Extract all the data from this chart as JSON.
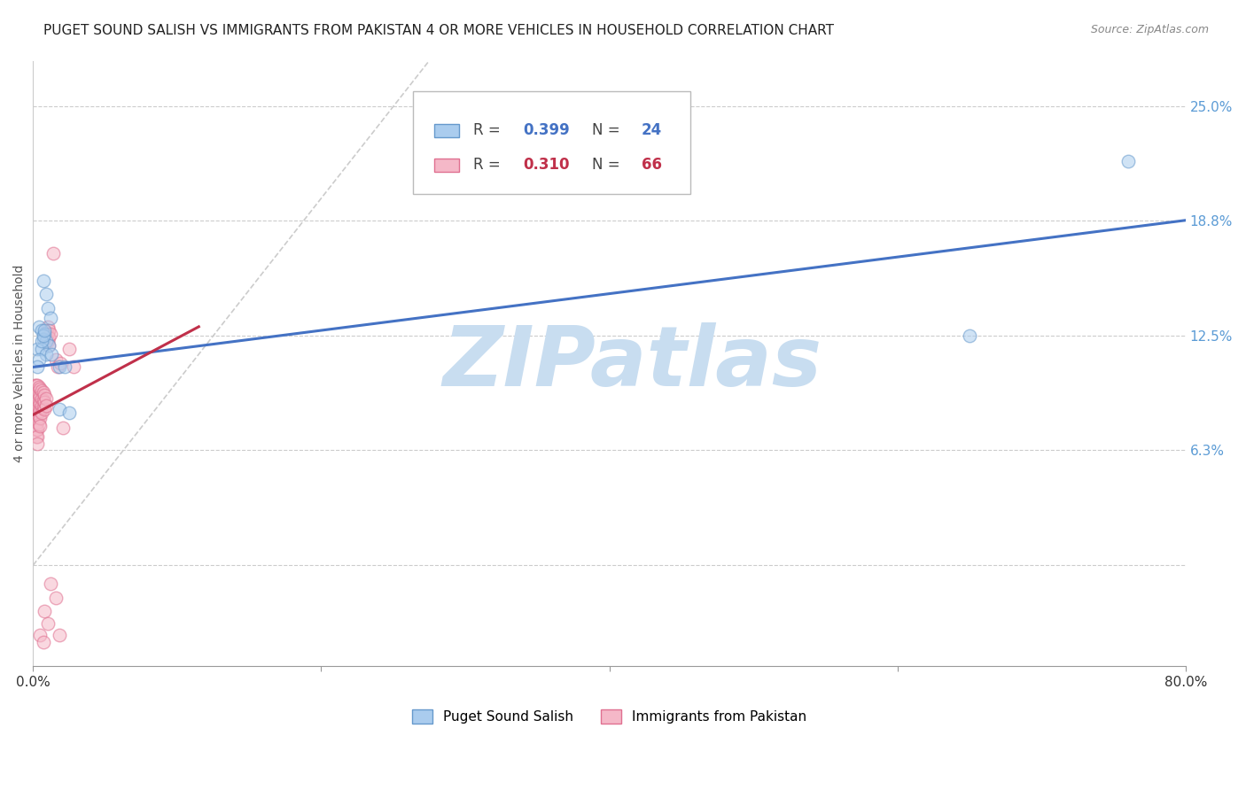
{
  "title": "PUGET SOUND SALISH VS IMMIGRANTS FROM PAKISTAN 4 OR MORE VEHICLES IN HOUSEHOLD CORRELATION CHART",
  "source": "Source: ZipAtlas.com",
  "ylabel": "4 or more Vehicles in Household",
  "xlim": [
    0.0,
    0.8
  ],
  "ylim": [
    -0.055,
    0.275
  ],
  "ytick_positions": [
    0.063,
    0.125,
    0.188,
    0.25
  ],
  "ytick_labels": [
    "6.3%",
    "12.5%",
    "18.8%",
    "25.0%"
  ],
  "watermark": "ZIPatlas",
  "watermark_color": "#c8ddf0",
  "blue_color": "#aaccee",
  "pink_color": "#f5b8c8",
  "blue_edge": "#6699cc",
  "pink_edge": "#e07090",
  "trend_blue": "#4472c4",
  "trend_pink": "#c0304a",
  "ref_line_color": "#cccccc",
  "grid_color": "#cccccc",
  "blue_scatter": [
    [
      0.007,
      0.155
    ],
    [
      0.009,
      0.148
    ],
    [
      0.01,
      0.14
    ],
    [
      0.012,
      0.135
    ],
    [
      0.004,
      0.13
    ],
    [
      0.006,
      0.128
    ],
    [
      0.008,
      0.126
    ],
    [
      0.007,
      0.123
    ],
    [
      0.009,
      0.122
    ],
    [
      0.011,
      0.12
    ],
    [
      0.003,
      0.118
    ],
    [
      0.006,
      0.118
    ],
    [
      0.009,
      0.115
    ],
    [
      0.013,
      0.115
    ],
    [
      0.004,
      0.112
    ],
    [
      0.006,
      0.122
    ],
    [
      0.007,
      0.125
    ],
    [
      0.008,
      0.128
    ],
    [
      0.018,
      0.108
    ],
    [
      0.022,
      0.108
    ],
    [
      0.003,
      0.108
    ],
    [
      0.018,
      0.085
    ],
    [
      0.025,
      0.083
    ],
    [
      0.65,
      0.125
    ],
    [
      0.76,
      0.22
    ]
  ],
  "pink_scatter": [
    [
      0.001,
      0.098
    ],
    [
      0.001,
      0.095
    ],
    [
      0.001,
      0.092
    ],
    [
      0.001,
      0.089
    ],
    [
      0.001,
      0.086
    ],
    [
      0.001,
      0.082
    ],
    [
      0.002,
      0.098
    ],
    [
      0.002,
      0.094
    ],
    [
      0.002,
      0.09
    ],
    [
      0.002,
      0.086
    ],
    [
      0.002,
      0.082
    ],
    [
      0.002,
      0.078
    ],
    [
      0.002,
      0.074
    ],
    [
      0.002,
      0.07
    ],
    [
      0.003,
      0.098
    ],
    [
      0.003,
      0.094
    ],
    [
      0.003,
      0.09
    ],
    [
      0.003,
      0.086
    ],
    [
      0.003,
      0.082
    ],
    [
      0.003,
      0.078
    ],
    [
      0.003,
      0.074
    ],
    [
      0.003,
      0.07
    ],
    [
      0.003,
      0.066
    ],
    [
      0.004,
      0.097
    ],
    [
      0.004,
      0.093
    ],
    [
      0.004,
      0.089
    ],
    [
      0.004,
      0.085
    ],
    [
      0.004,
      0.081
    ],
    [
      0.004,
      0.077
    ],
    [
      0.005,
      0.096
    ],
    [
      0.005,
      0.092
    ],
    [
      0.005,
      0.088
    ],
    [
      0.005,
      0.084
    ],
    [
      0.005,
      0.08
    ],
    [
      0.005,
      0.076
    ],
    [
      0.006,
      0.095
    ],
    [
      0.006,
      0.091
    ],
    [
      0.006,
      0.087
    ],
    [
      0.006,
      0.083
    ],
    [
      0.007,
      0.094
    ],
    [
      0.007,
      0.09
    ],
    [
      0.007,
      0.086
    ],
    [
      0.008,
      0.093
    ],
    [
      0.008,
      0.089
    ],
    [
      0.008,
      0.085
    ],
    [
      0.009,
      0.091
    ],
    [
      0.009,
      0.087
    ],
    [
      0.01,
      0.13
    ],
    [
      0.01,
      0.126
    ],
    [
      0.01,
      0.122
    ],
    [
      0.011,
      0.128
    ],
    [
      0.011,
      0.124
    ],
    [
      0.011,
      0.12
    ],
    [
      0.012,
      0.126
    ],
    [
      0.014,
      0.17
    ],
    [
      0.016,
      0.112
    ],
    [
      0.017,
      0.108
    ],
    [
      0.019,
      0.11
    ],
    [
      0.021,
      0.075
    ],
    [
      0.025,
      0.118
    ],
    [
      0.028,
      0.108
    ],
    [
      0.012,
      -0.01
    ],
    [
      0.016,
      -0.018
    ],
    [
      0.008,
      -0.025
    ],
    [
      0.01,
      -0.032
    ],
    [
      0.005,
      -0.038
    ],
    [
      0.007,
      -0.042
    ],
    [
      0.018,
      -0.038
    ]
  ],
  "blue_trend_x": [
    0.0,
    0.8
  ],
  "blue_trend_y": [
    0.108,
    0.188
  ],
  "pink_trend_x": [
    0.0,
    0.115
  ],
  "pink_trend_y": [
    0.082,
    0.13
  ],
  "ref_line_x": [
    0.0,
    0.275
  ],
  "ref_line_y": [
    0.0,
    0.275
  ],
  "title_fontsize": 11,
  "source_fontsize": 9,
  "axis_label_fontsize": 10,
  "tick_fontsize": 11,
  "legend_fontsize": 12,
  "scatter_size": 110,
  "scatter_alpha": 0.55,
  "background_color": "#ffffff",
  "axis_color": "#5b9bd5",
  "legend_R_color_blue": "#4472c4",
  "legend_N_color_blue": "#4472c4",
  "legend_R_color_pink": "#c0304a",
  "legend_N_color_pink": "#c0304a"
}
